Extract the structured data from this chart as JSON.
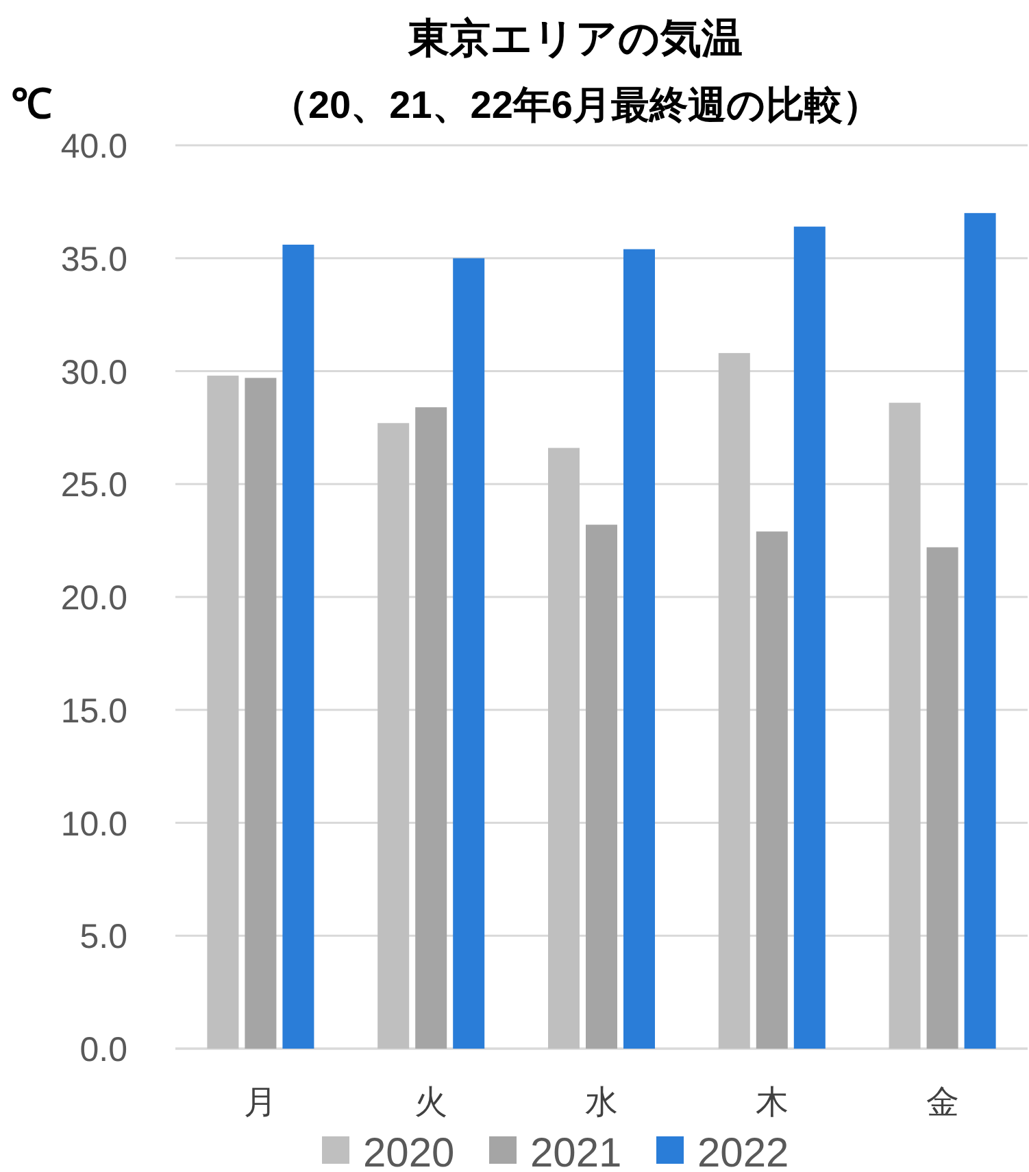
{
  "chart_data": {
    "type": "bar",
    "title": "東京エリアの気温",
    "subtitle": "（20、21、22年6月最終週の比較）",
    "ylabel": "℃",
    "categories": [
      "月",
      "火",
      "水",
      "木",
      "金"
    ],
    "series": [
      {
        "name": "2020",
        "color": "#bfbfbf",
        "values": [
          29.8,
          27.7,
          26.6,
          30.8,
          28.6
        ]
      },
      {
        "name": "2021",
        "color": "#a5a5a5",
        "values": [
          29.7,
          28.4,
          23.2,
          22.9,
          22.2
        ]
      },
      {
        "name": "2022",
        "color": "#2a7dd8",
        "values": [
          35.6,
          35.0,
          35.4,
          36.4,
          37.0
        ]
      }
    ],
    "ylim": [
      0,
      40
    ],
    "yticks": [
      {
        "value": 0,
        "label": "0.0"
      },
      {
        "value": 5,
        "label": "5.0"
      },
      {
        "value": 10,
        "label": "10.0"
      },
      {
        "value": 15,
        "label": "15.0"
      },
      {
        "value": 20,
        "label": "20.0"
      },
      {
        "value": 25,
        "label": "25.0"
      },
      {
        "value": 30,
        "label": "30.0"
      },
      {
        "value": 35,
        "label": "35.0"
      },
      {
        "value": 40,
        "label": "40.0"
      }
    ],
    "grid": "y",
    "legend": "bottom"
  }
}
